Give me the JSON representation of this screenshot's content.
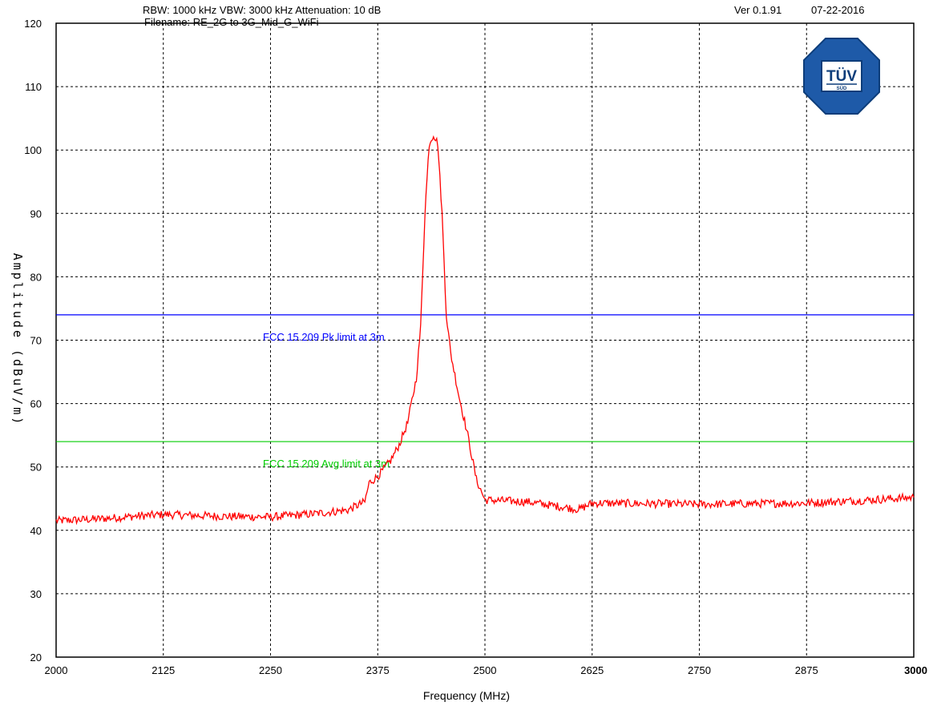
{
  "header": {
    "settings": "RBW: 1000 kHz   VBW: 3000 kHz    Attenuation: 10 dB",
    "version": "Ver 0.1.91",
    "date": "07-22-2016",
    "filename": "Filename: RE_2G to 3G_Mid_G_WiFi"
  },
  "logo": {
    "text": "TÜV",
    "subtext": "SÜD",
    "color": "#1e5aa8"
  },
  "chart_data": {
    "type": "line",
    "xlabel": "Frequency (MHz)",
    "ylabel": "Amplitude (dBuV/m)",
    "xlim": [
      2000,
      3000
    ],
    "ylim": [
      20,
      120
    ],
    "x_ticks": [
      "2000",
      "2125",
      "2250",
      "2375",
      "2500",
      "2625",
      "2750",
      "2875",
      "3000"
    ],
    "y_ticks": [
      "120",
      "110",
      "100",
      "90",
      "80",
      "70",
      "60",
      "50",
      "40",
      "30",
      "20"
    ],
    "grid": true,
    "limit_lines": [
      {
        "label": "FCC 15.209 Pk limit at 3m",
        "value": 74,
        "color": "#0000ff"
      },
      {
        "label": "FCC 15.209 Avg limit at 3m",
        "value": 54,
        "color": "#00cc00"
      }
    ],
    "series": [
      {
        "color": "#ff0000",
        "x": [
          2000,
          2050,
          2100,
          2125,
          2150,
          2200,
          2250,
          2300,
          2340,
          2360,
          2365,
          2375,
          2390,
          2400,
          2410,
          2420,
          2425,
          2430,
          2435,
          2440,
          2445,
          2450,
          2455,
          2460,
          2470,
          2480,
          2490,
          2500,
          2550,
          2600,
          2610,
          2625,
          2700,
          2750,
          2800,
          2875,
          2950,
          3000
        ],
        "y": [
          41.5,
          41.8,
          42.3,
          42.5,
          42.4,
          42.2,
          42.1,
          42.6,
          43.2,
          44.5,
          47.5,
          48.5,
          51,
          53.5,
          57,
          64,
          72,
          90,
          101,
          102.5,
          101,
          90,
          74,
          68,
          61,
          55,
          48,
          44.8,
          44.5,
          43.5,
          43.3,
          44.3,
          44.2,
          44.1,
          44.2,
          44.3,
          44.8,
          45.2
        ]
      }
    ]
  }
}
